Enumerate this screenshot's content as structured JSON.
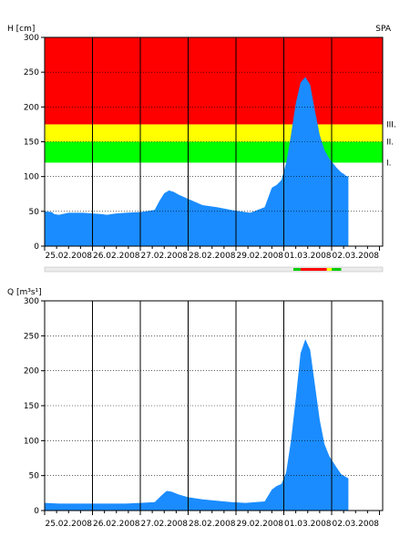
{
  "station": "SPA",
  "chart_data": [
    {
      "type": "area",
      "ylabel": "H [cm]",
      "ylim": [
        0,
        300
      ],
      "yticks": [
        0,
        50,
        100,
        150,
        200,
        250,
        300
      ],
      "xlim": [
        0,
        7.2
      ],
      "categories": [
        "25.02.2008",
        "26.02.2008",
        "27.02.2008",
        "28.02.2008",
        "29.02.2008",
        "01.03.2008",
        "02.03.2008"
      ],
      "grid": true,
      "bands": [
        {
          "label": "I.",
          "from": 120,
          "to": 150,
          "color": "#00ff00"
        },
        {
          "label": "II.",
          "from": 150,
          "to": 175,
          "color": "#ffff00"
        },
        {
          "label": "III.",
          "from": 175,
          "to": 300,
          "color": "#ff0000"
        }
      ],
      "series": [
        {
          "color": "#1a8cff",
          "x": [
            0,
            0.15,
            0.2,
            0.3,
            0.5,
            0.8,
            1.0,
            1.2,
            1.3,
            1.5,
            1.7,
            2.0,
            2.3,
            2.4,
            2.5,
            2.6,
            2.7,
            2.8,
            3.0,
            3.3,
            3.6,
            3.9,
            4.1,
            4.3,
            4.6,
            4.75,
            4.85,
            4.95,
            5.05,
            5.15,
            5.25,
            5.35,
            5.45,
            5.55,
            5.65,
            5.75,
            5.85,
            5.95,
            6.1,
            6.2,
            6.25,
            6.3,
            6.35
          ],
          "y": [
            50,
            49,
            46,
            45,
            48,
            48,
            47,
            46,
            45,
            47,
            48,
            49,
            52,
            65,
            76,
            80,
            78,
            74,
            68,
            59,
            56,
            52,
            50,
            48,
            56,
            84,
            88,
            95,
            120,
            160,
            205,
            235,
            243,
            232,
            195,
            160,
            138,
            126,
            113,
            106,
            104,
            101,
            100
          ]
        }
      ],
      "status_strip": [
        {
          "from": 5.2,
          "to": 5.35,
          "color": "#00cc00"
        },
        {
          "from": 5.35,
          "to": 5.9,
          "color": "#ff0000"
        },
        {
          "from": 5.9,
          "to": 6.0,
          "color": "#ffff00"
        },
        {
          "from": 6.0,
          "to": 6.2,
          "color": "#00cc00"
        }
      ]
    },
    {
      "type": "area",
      "ylabel": "Q [m³s¹]",
      "ylim": [
        0,
        300
      ],
      "yticks": [
        0,
        50,
        100,
        150,
        200,
        250,
        300
      ],
      "xlim": [
        0,
        7.2
      ],
      "categories": [
        "25.02.2008",
        "26.02.2008",
        "27.02.2008",
        "28.02.2008",
        "29.02.2008",
        "01.03.2008",
        "02.03.2008"
      ],
      "grid": true,
      "series": [
        {
          "color": "#1a8cff",
          "x": [
            0,
            0.3,
            0.6,
            1.0,
            1.4,
            1.7,
            2.0,
            2.3,
            2.45,
            2.55,
            2.65,
            2.8,
            3.0,
            3.3,
            3.6,
            3.9,
            4.2,
            4.6,
            4.75,
            4.85,
            4.95,
            5.05,
            5.15,
            5.25,
            5.35,
            5.45,
            5.55,
            5.65,
            5.75,
            5.85,
            5.95,
            6.1,
            6.2,
            6.3,
            6.35
          ],
          "y": [
            11,
            10,
            10,
            10,
            10,
            10,
            11,
            12,
            22,
            28,
            27,
            23,
            19,
            16,
            14,
            12,
            11,
            13,
            30,
            35,
            38,
            55,
            100,
            160,
            225,
            245,
            230,
            180,
            130,
            95,
            78,
            62,
            52,
            48,
            46
          ]
        }
      ]
    }
  ]
}
